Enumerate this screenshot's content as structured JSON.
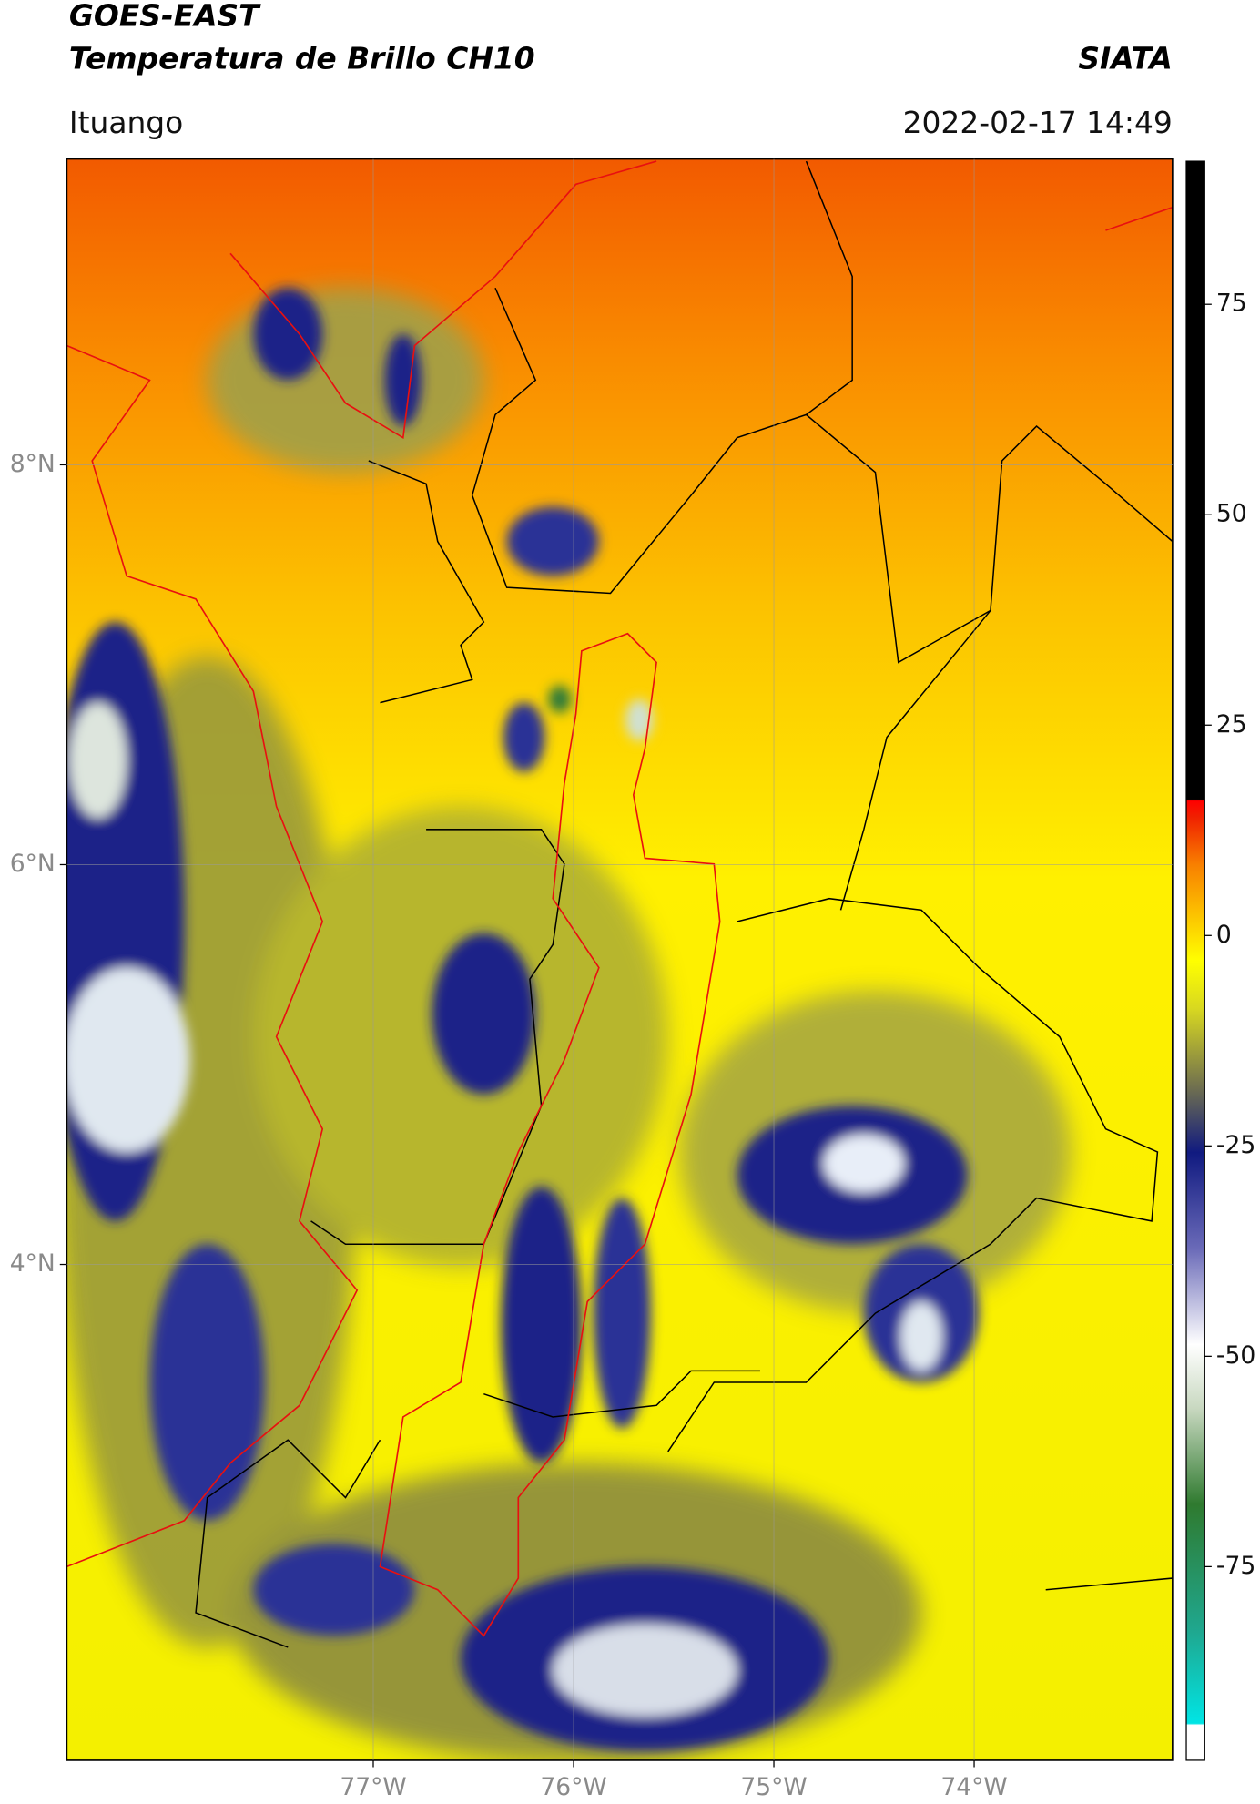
{
  "chart_data": {
    "type": "map",
    "title": "GOES-EAST",
    "subtitle": "Temperatura de Brillo CH10",
    "source": "SIATA",
    "location": "Ituango",
    "datetime": "2022-02-17 14:49",
    "xlim": [
      -78.53,
      -73.01
    ],
    "ylim": [
      1.52,
      9.53
    ],
    "xticks": [
      {
        "value": -77,
        "label": "77°W"
      },
      {
        "value": -76,
        "label": "76°W"
      },
      {
        "value": -75,
        "label": "75°W"
      },
      {
        "value": -74,
        "label": "74°W"
      }
    ],
    "yticks": [
      {
        "value": 8,
        "label": "8°N"
      },
      {
        "value": 6,
        "label": "6°N"
      },
      {
        "value": 4,
        "label": "4°N"
      }
    ],
    "grid": true,
    "colorbar": {
      "lim": [
        -98,
        92
      ],
      "ticks": [
        75,
        50,
        25,
        0,
        -25,
        -50,
        -75
      ]
    }
  }
}
